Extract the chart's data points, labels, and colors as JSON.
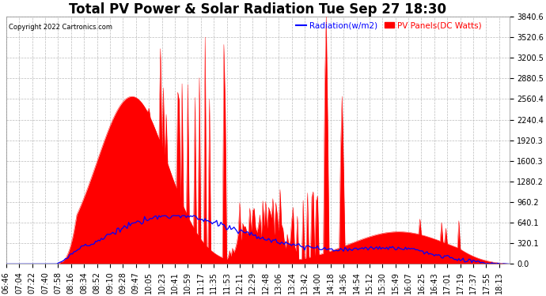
{
  "title": "Total PV Power & Solar Radiation Tue Sep 27 18:30",
  "copyright_text": "Copyright 2022 Cartronics.com",
  "legend_radiation": "Radiation(w/m2)",
  "legend_pv": "PV Panels(DC Watts)",
  "y_max": 3840.6,
  "y_min": 0.0,
  "y_ticks": [
    0.0,
    320.1,
    640.1,
    960.2,
    1280.2,
    1600.3,
    1920.3,
    2240.4,
    2560.4,
    2880.5,
    3200.5,
    3520.6,
    3840.6
  ],
  "background_color": "#ffffff",
  "grid_color": "#bbbbbb",
  "pv_fill_color": "#ff0000",
  "radiation_color": "#0000ff",
  "title_fontsize": 12,
  "tick_fontsize": 7,
  "fig_width": 6.9,
  "fig_height": 3.75,
  "dpi": 100
}
